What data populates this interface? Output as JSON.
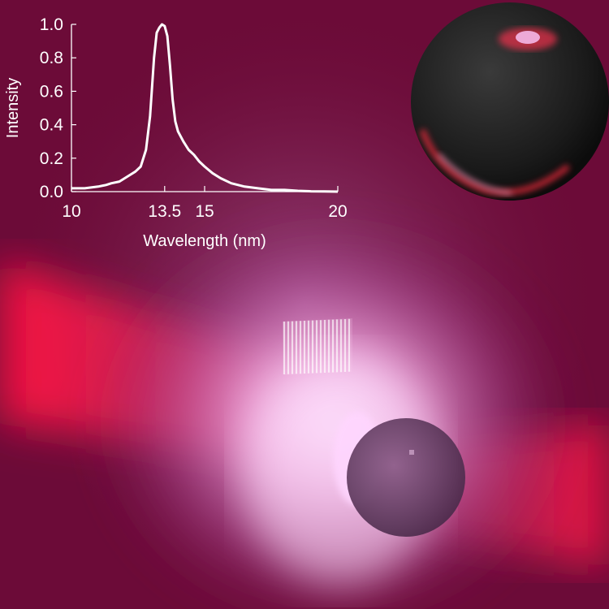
{
  "chart_data": {
    "type": "line",
    "title": "",
    "xlabel": "Wavelength (nm)",
    "ylabel": "Intensity",
    "xlim": [
      10,
      20
    ],
    "ylim": [
      0,
      1.0
    ],
    "xticks": [
      10,
      13.5,
      15,
      20
    ],
    "xtick_labels": [
      "10",
      "13.5",
      "15",
      "20"
    ],
    "yticks": [
      0.0,
      0.2,
      0.4,
      0.6,
      0.8,
      1.0
    ],
    "ytick_labels": [
      "0.0",
      "0.2",
      "0.4",
      "0.6",
      "0.8",
      "1.0"
    ],
    "grid": false,
    "legend": "none",
    "series": [
      {
        "color": "#ffffff",
        "x": [
          10.0,
          10.5,
          11.0,
          11.3,
          11.5,
          11.8,
          12.0,
          12.2,
          12.4,
          12.6,
          12.8,
          12.95,
          13.1,
          13.2,
          13.3,
          13.4,
          13.5,
          13.6,
          13.7,
          13.8,
          13.9,
          14.0,
          14.2,
          14.4,
          14.6,
          14.8,
          15.0,
          15.3,
          15.6,
          16.0,
          16.5,
          17.0,
          17.5,
          18.0,
          18.5,
          19.0,
          19.5,
          20.0
        ],
        "y": [
          0.02,
          0.02,
          0.03,
          0.04,
          0.05,
          0.06,
          0.08,
          0.1,
          0.12,
          0.15,
          0.25,
          0.45,
          0.8,
          0.95,
          0.98,
          1.0,
          0.99,
          0.93,
          0.75,
          0.55,
          0.42,
          0.36,
          0.3,
          0.25,
          0.22,
          0.18,
          0.15,
          0.11,
          0.08,
          0.05,
          0.03,
          0.02,
          0.01,
          0.01,
          0.005,
          0.002,
          0.001,
          0.0
        ]
      }
    ]
  }
}
